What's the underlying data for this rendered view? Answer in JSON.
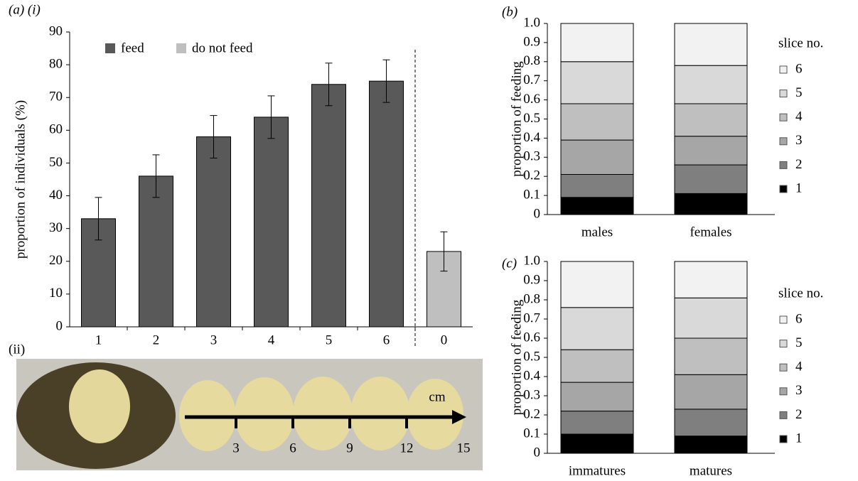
{
  "chart_data": [
    {
      "type": "bar",
      "panel_label": "(a) (i)",
      "ylabel": "proportion of individuals (%)",
      "categories": [
        "1",
        "2",
        "3",
        "4",
        "5",
        "6",
        "0"
      ],
      "series": [
        {
          "name": "feed",
          "color": "#595959",
          "values": [
            33,
            46,
            58,
            64,
            74,
            75,
            null
          ],
          "errors": [
            6.5,
            6.5,
            6.5,
            6.5,
            6.5,
            6.5,
            null
          ]
        },
        {
          "name": "do not feed",
          "color": "#bfbfbf",
          "values": [
            null,
            null,
            null,
            null,
            null,
            null,
            23
          ],
          "errors": [
            null,
            null,
            null,
            null,
            null,
            null,
            6
          ]
        }
      ],
      "ylim": [
        0,
        90
      ],
      "yticks": [
        0,
        10,
        20,
        30,
        40,
        50,
        60,
        70,
        80,
        90
      ]
    },
    {
      "type": "stacked_bar",
      "panel_label": "(b)",
      "ylabel": "proportion of feeding",
      "legend_title": "slice no.",
      "categories": [
        "males",
        "females"
      ],
      "series": [
        {
          "name": "1",
          "color": "#000000",
          "values": [
            0.09,
            0.11
          ]
        },
        {
          "name": "2",
          "color": "#7f7f7f",
          "values": [
            0.12,
            0.15
          ]
        },
        {
          "name": "3",
          "color": "#a6a6a6",
          "values": [
            0.18,
            0.15
          ]
        },
        {
          "name": "4",
          "color": "#bfbfbf",
          "values": [
            0.19,
            0.17
          ]
        },
        {
          "name": "5",
          "color": "#d9d9d9",
          "values": [
            0.22,
            0.2
          ]
        },
        {
          "name": "6",
          "color": "#f2f2f2",
          "values": [
            0.2,
            0.22
          ]
        }
      ],
      "ylim": [
        0,
        1
      ],
      "yticks": [
        0,
        0.1,
        0.2,
        0.3,
        0.4,
        0.5,
        0.6,
        0.7,
        0.8,
        0.9,
        {
          "value": 1,
          "label": "1.0"
        }
      ]
    },
    {
      "type": "stacked_bar",
      "panel_label": "(c)",
      "ylabel": "proportion of feeding",
      "legend_title": "slice no.",
      "categories": [
        "immatures",
        "matures"
      ],
      "series": [
        {
          "name": "1",
          "color": "#000000",
          "values": [
            0.1,
            0.09
          ]
        },
        {
          "name": "2",
          "color": "#7f7f7f",
          "values": [
            0.12,
            0.14
          ]
        },
        {
          "name": "3",
          "color": "#a6a6a6",
          "values": [
            0.15,
            0.18
          ]
        },
        {
          "name": "4",
          "color": "#bfbfbf",
          "values": [
            0.17,
            0.19
          ]
        },
        {
          "name": "5",
          "color": "#d9d9d9",
          "values": [
            0.22,
            0.21
          ]
        },
        {
          "name": "6",
          "color": "#f2f2f2",
          "values": [
            0.24,
            0.19
          ]
        }
      ],
      "ylim": [
        0,
        1
      ],
      "yticks": [
        0,
        0.1,
        0.2,
        0.3,
        0.4,
        0.5,
        0.6,
        0.7,
        0.8,
        0.9,
        {
          "value": 1,
          "label": "1.0"
        }
      ]
    }
  ],
  "photo": {
    "label": "(ii)",
    "unit": "cm",
    "scale_marks": [
      3,
      6,
      9,
      12,
      15
    ]
  }
}
